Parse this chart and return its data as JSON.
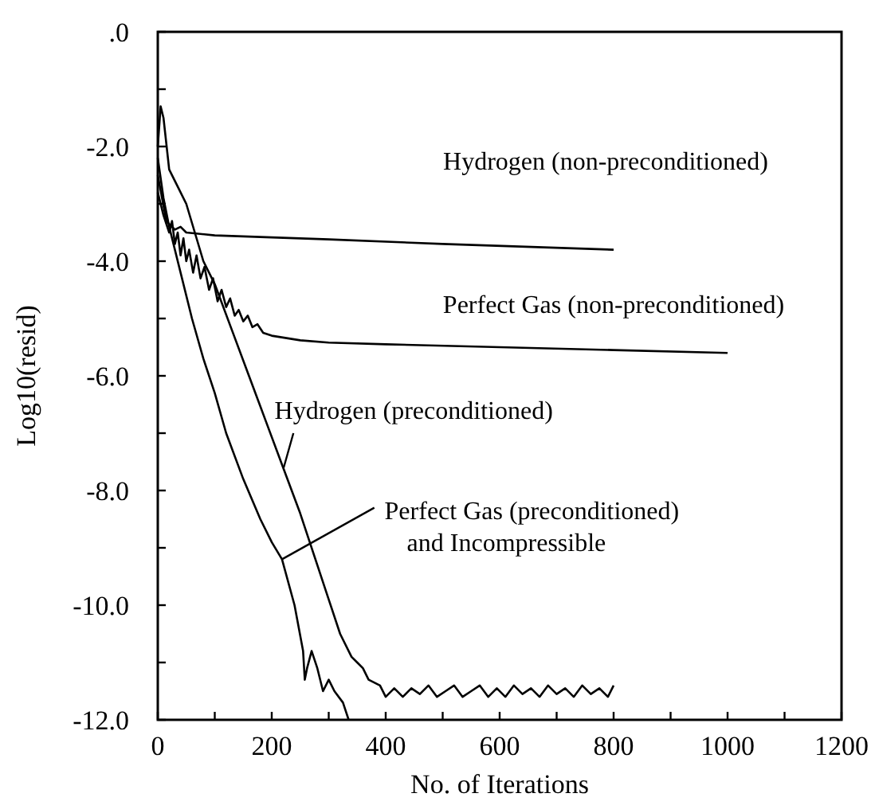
{
  "chart_data": {
    "type": "line",
    "xlabel": "No. of Iterations",
    "ylabel": "Log10(resid)",
    "xlim": [
      0,
      1200
    ],
    "ylim": [
      -12,
      0
    ],
    "xticks": [
      0,
      {
        "value": 100,
        "label": null
      },
      200,
      {
        "value": 300,
        "label": null
      },
      400,
      {
        "value": 500,
        "label": null
      },
      600,
      {
        "value": 700,
        "label": null
      },
      800,
      {
        "value": 900,
        "label": null
      },
      1000,
      {
        "value": 1100,
        "label": null
      },
      1200
    ],
    "yticks": [
      {
        "value": 0,
        "label": ".0"
      },
      {
        "value": -1,
        "label": null
      },
      {
        "value": -2,
        "label": "-2.0"
      },
      {
        "value": -3,
        "label": null
      },
      {
        "value": -4,
        "label": "-4.0"
      },
      {
        "value": -5,
        "label": null
      },
      {
        "value": -6,
        "label": "-6.0"
      },
      {
        "value": -7,
        "label": null
      },
      {
        "value": -8,
        "label": "-8.0"
      },
      {
        "value": -9,
        "label": null
      },
      {
        "value": -10,
        "label": "-10.0"
      },
      {
        "value": -11,
        "label": null
      },
      {
        "value": -12,
        "label": "-12.0"
      }
    ],
    "grid": false,
    "marker": "none",
    "line_style": "solid",
    "series": [
      {
        "name": "Hydrogen (non-preconditioned)",
        "color": "#000000",
        "x": [
          0,
          15,
          30,
          40,
          50,
          100,
          300,
          500,
          800
        ],
        "values": [
          -2.5,
          -3.3,
          -3.45,
          -3.4,
          -3.5,
          -3.55,
          -3.62,
          -3.7,
          -3.8
        ]
      },
      {
        "name": "Perfect Gas (non-preconditioned)",
        "color": "#000000",
        "x": [
          0,
          10,
          20,
          25,
          30,
          35,
          40,
          45,
          50,
          55,
          62,
          68,
          75,
          82,
          90,
          97,
          105,
          112,
          120,
          127,
          135,
          142,
          150,
          158,
          166,
          175,
          185,
          200,
          250,
          300,
          400,
          600,
          800,
          1000
        ],
        "values": [
          -2.8,
          -3.2,
          -3.5,
          -3.3,
          -3.7,
          -3.5,
          -3.9,
          -3.6,
          -4.0,
          -3.8,
          -4.2,
          -3.9,
          -4.3,
          -4.1,
          -4.5,
          -4.3,
          -4.7,
          -4.5,
          -4.8,
          -4.65,
          -4.95,
          -4.85,
          -5.05,
          -4.95,
          -5.15,
          -5.1,
          -5.25,
          -5.3,
          -5.38,
          -5.42,
          -5.45,
          -5.5,
          -5.55,
          -5.6
        ]
      },
      {
        "name": "Hydrogen (preconditioned)",
        "color": "#000000",
        "x": [
          0,
          5,
          10,
          20,
          35,
          50,
          65,
          80,
          100,
          130,
          160,
          190,
          220,
          250,
          280,
          300,
          320,
          340,
          350,
          360,
          370,
          390,
          400,
          415,
          430,
          445,
          460,
          475,
          490,
          505,
          520,
          535,
          550,
          565,
          580,
          595,
          610,
          625,
          640,
          655,
          670,
          685,
          700,
          715,
          730,
          745,
          760,
          775,
          790,
          800
        ],
        "values": [
          -2.0,
          -1.3,
          -1.5,
          -2.4,
          -2.7,
          -3.0,
          -3.5,
          -4.0,
          -4.4,
          -5.2,
          -6.0,
          -6.8,
          -7.6,
          -8.4,
          -9.3,
          -9.9,
          -10.5,
          -10.9,
          -11.0,
          -11.1,
          -11.3,
          -11.4,
          -11.6,
          -11.45,
          -11.6,
          -11.45,
          -11.55,
          -11.4,
          -11.6,
          -11.5,
          -11.4,
          -11.6,
          -11.5,
          -11.4,
          -11.6,
          -11.45,
          -11.6,
          -11.4,
          -11.55,
          -11.45,
          -11.6,
          -11.4,
          -11.55,
          -11.45,
          -11.6,
          -11.4,
          -11.55,
          -11.45,
          -11.6,
          -11.4
        ]
      },
      {
        "name": "Perfect Gas (preconditioned)\nand Incompressible",
        "color": "#000000",
        "x": [
          0,
          10,
          20,
          40,
          60,
          80,
          100,
          120,
          150,
          180,
          200,
          218,
          240,
          255,
          258,
          262,
          270,
          280,
          290,
          300,
          310,
          325,
          335
        ],
        "values": [
          -2.2,
          -2.9,
          -3.4,
          -4.2,
          -5.0,
          -5.7,
          -6.3,
          -7.0,
          -7.8,
          -8.5,
          -8.9,
          -9.2,
          -10.0,
          -10.8,
          -11.3,
          -11.1,
          -10.8,
          -11.1,
          -11.5,
          -11.3,
          -11.5,
          -11.7,
          -12.0
        ]
      }
    ]
  }
}
